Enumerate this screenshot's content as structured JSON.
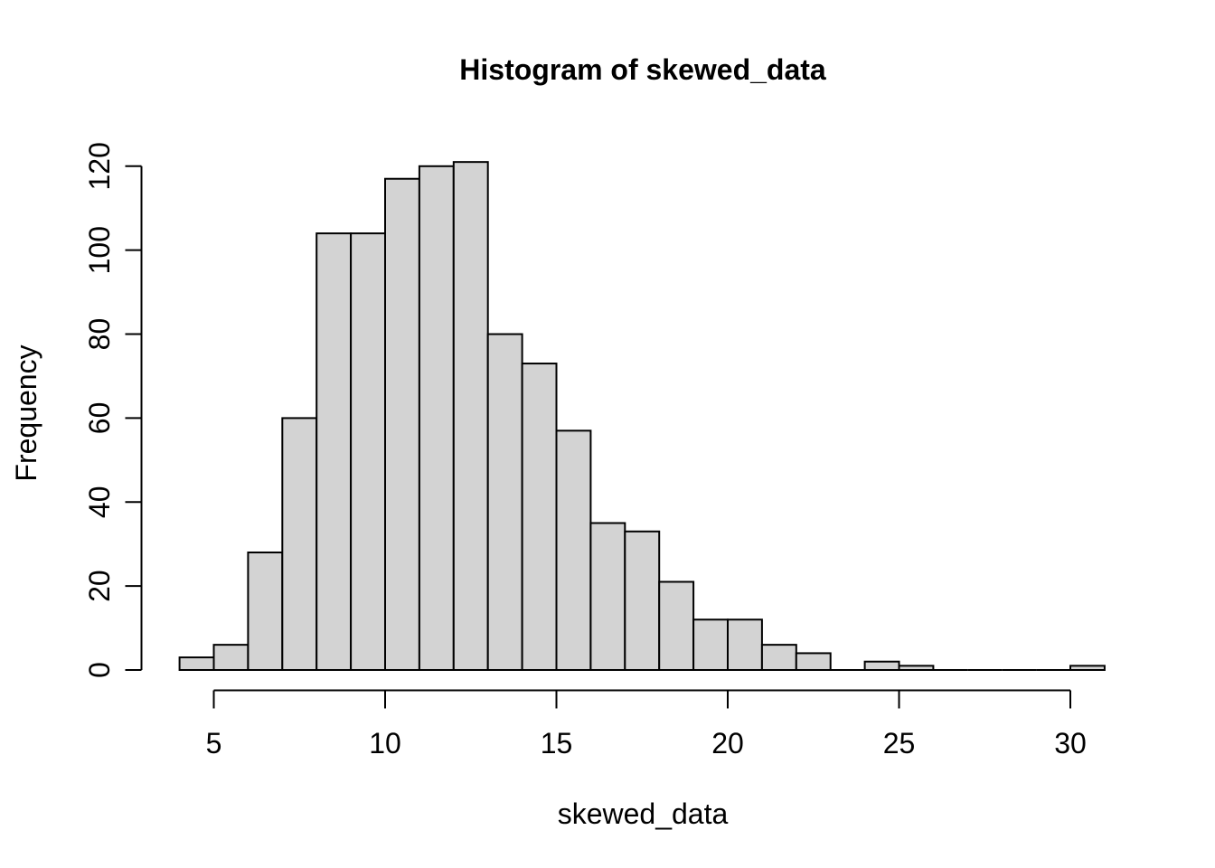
{
  "chart_data": {
    "type": "bar",
    "subtype": "histogram",
    "title": "Histogram of skewed_data",
    "xlabel": "skewed_data",
    "ylabel": "Frequency",
    "bins": {
      "start": 4,
      "width": 1,
      "end": 31
    },
    "counts": [
      3,
      6,
      28,
      60,
      104,
      104,
      117,
      120,
      121,
      80,
      73,
      57,
      35,
      33,
      21,
      12,
      12,
      6,
      4,
      0,
      2,
      1,
      0,
      0,
      0,
      0,
      1
    ],
    "x_ticks": [
      5,
      10,
      15,
      20,
      25,
      30
    ],
    "y_ticks": [
      0,
      20,
      40,
      60,
      80,
      100,
      120
    ],
    "xlim": [
      4,
      31
    ],
    "ylim": [
      0,
      121
    ],
    "grid": false,
    "legend": "none",
    "colors": {
      "bar_fill": "#d3d3d3",
      "bar_stroke": "#000000",
      "axis": "#000000",
      "text": "#000000",
      "background": "#ffffff"
    }
  }
}
